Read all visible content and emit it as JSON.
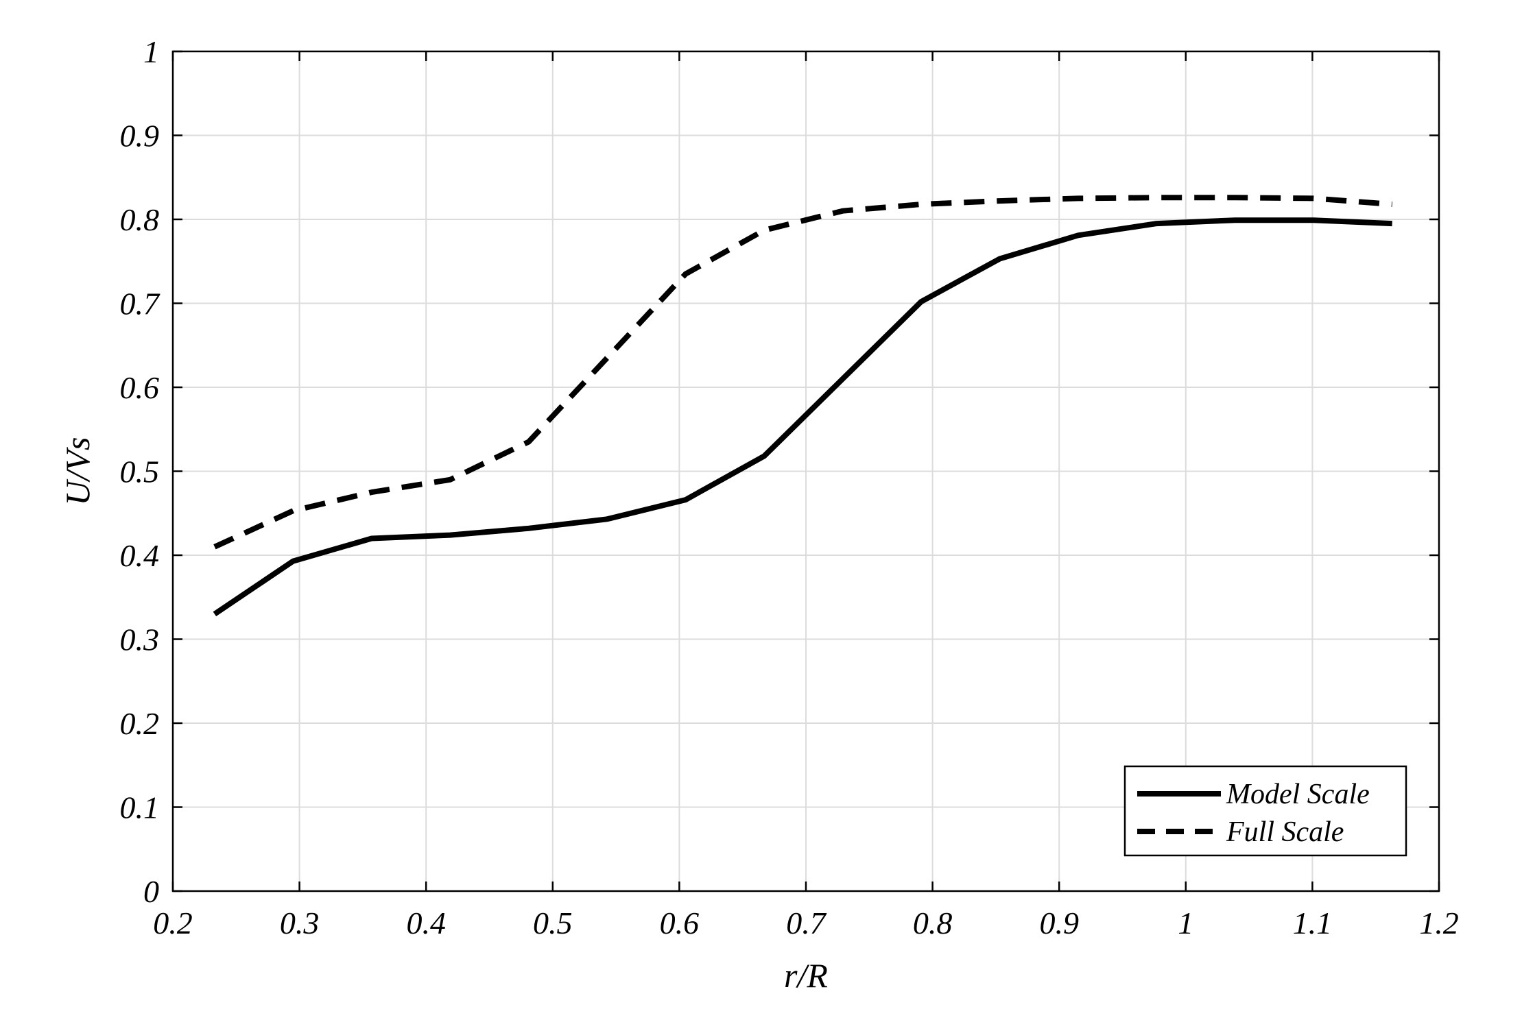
{
  "chart_data": {
    "type": "line",
    "title": "",
    "xlabel": "r/R",
    "ylabel": "U/Vs",
    "xlim": [
      0.2,
      1.2
    ],
    "ylim": [
      0,
      1
    ],
    "xticks": [
      0.2,
      0.3,
      0.4,
      0.5,
      0.6,
      0.7,
      0.8,
      0.9,
      1.0,
      1.1,
      1.2
    ],
    "xtick_labels": [
      "0.2",
      "0.3",
      "0.4",
      "0.5",
      "0.6",
      "0.7",
      "0.8",
      "0.9",
      "1",
      "1.1",
      "1.2"
    ],
    "yticks": [
      0,
      0.1,
      0.2,
      0.3,
      0.4,
      0.5,
      0.6,
      0.7,
      0.8,
      0.9,
      1.0
    ],
    "ytick_labels": [
      "0",
      "0.1",
      "0.2",
      "0.3",
      "0.4",
      "0.5",
      "0.6",
      "0.7",
      "0.8",
      "0.9",
      "1"
    ],
    "grid": true,
    "legend_position": "bottom-right",
    "series": [
      {
        "name": "Model Scale",
        "style": "solid",
        "color": "#000000",
        "x": [
          0.233,
          0.295,
          0.357,
          0.419,
          0.481,
          0.543,
          0.605,
          0.667,
          0.729,
          0.791,
          0.853,
          0.915,
          0.977,
          1.039,
          1.101,
          1.163
        ],
        "y": [
          0.33,
          0.393,
          0.42,
          0.424,
          0.432,
          0.443,
          0.466,
          0.518,
          0.61,
          0.702,
          0.753,
          0.781,
          0.795,
          0.799,
          0.799,
          0.795
        ]
      },
      {
        "name": "Full Scale",
        "style": "dashed",
        "color": "#000000",
        "x": [
          0.233,
          0.295,
          0.357,
          0.419,
          0.481,
          0.543,
          0.605,
          0.667,
          0.729,
          0.791,
          0.853,
          0.915,
          0.977,
          1.039,
          1.101,
          1.163
        ],
        "y": [
          0.41,
          0.453,
          0.475,
          0.49,
          0.535,
          0.635,
          0.735,
          0.787,
          0.81,
          0.818,
          0.822,
          0.825,
          0.826,
          0.826,
          0.825,
          0.818
        ]
      }
    ]
  }
}
